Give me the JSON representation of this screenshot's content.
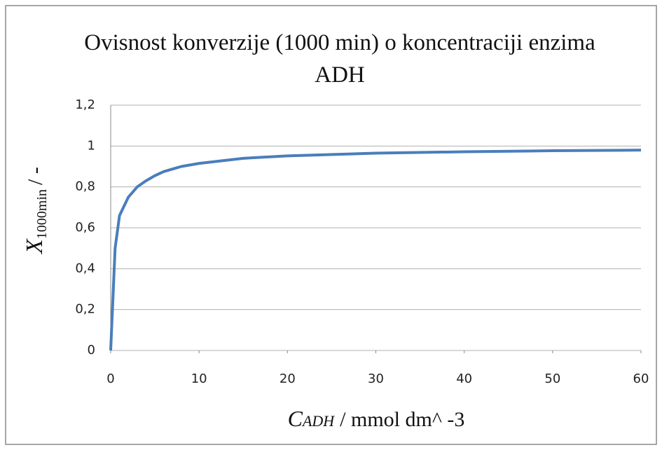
{
  "chart_data": {
    "type": "line",
    "title": "Ovisnost konverzije (1000 min) o koncentraciji enzima ADH",
    "xlabel": {
      "symbol": "C",
      "subscript": "ADH",
      "unit": "/ mmol dm^ -3"
    },
    "ylabel": {
      "symbol": "X",
      "subscript": "1000min",
      "unit": "/ -"
    },
    "x": [
      0,
      0.5,
      1,
      2,
      3,
      4,
      5,
      6,
      8,
      10,
      15,
      20,
      30,
      40,
      50,
      60
    ],
    "series": [
      {
        "name": "X",
        "color": "#4a7ebb",
        "values": [
          0,
          0.5,
          0.66,
          0.75,
          0.8,
          0.83,
          0.855,
          0.875,
          0.9,
          0.915,
          0.94,
          0.952,
          0.965,
          0.972,
          0.977,
          0.98
        ]
      }
    ],
    "xlim": [
      0,
      60
    ],
    "xticks": [
      0,
      10,
      20,
      30,
      40,
      50,
      60
    ],
    "ylim": [
      0,
      1.2
    ],
    "yticks": [
      0,
      {
        "value": 0.2,
        "label": "0,2"
      },
      {
        "value": 0.4,
        "label": "0,4"
      },
      {
        "value": 0.6,
        "label": "0,6"
      },
      {
        "value": 0.8,
        "label": "0,8"
      },
      1,
      {
        "value": 1.2,
        "label": "1,2"
      }
    ],
    "grid": true
  }
}
